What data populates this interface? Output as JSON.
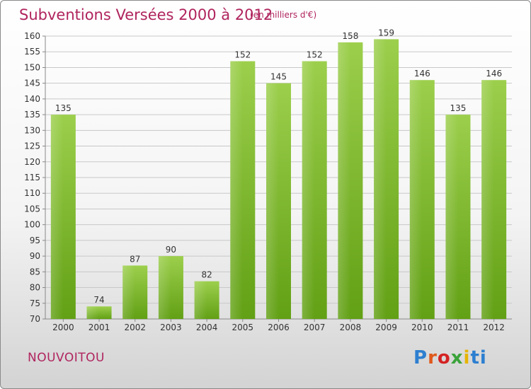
{
  "header": {
    "title": "Subventions Versées 2000 à 2012",
    "unit_note": "(en milliers d'€)"
  },
  "footer": {
    "commune": "NOUVOITOU",
    "logo_text": "Proxiti"
  },
  "colors": {
    "title": "#b0245e",
    "bar_light": "#9ccf4c",
    "bar_dark": "#62a015",
    "grid": "#c8c8c8"
  },
  "chart_data": {
    "type": "bar",
    "title": "Subventions Versées 2000 à 2012",
    "subtitle": "(en milliers d'€)",
    "xlabel": "",
    "ylabel": "",
    "categories": [
      "2000",
      "2001",
      "2002",
      "2003",
      "2004",
      "2005",
      "2006",
      "2007",
      "2008",
      "2009",
      "2010",
      "2011",
      "2012"
    ],
    "values": [
      135,
      74,
      87,
      90,
      82,
      152,
      145,
      152,
      158,
      159,
      146,
      135,
      146
    ],
    "ylim": [
      70,
      160
    ],
    "yticks": [
      70,
      75,
      80,
      85,
      90,
      95,
      100,
      105,
      110,
      115,
      120,
      125,
      130,
      135,
      140,
      145,
      150,
      155,
      160
    ],
    "grid": true,
    "data_labels": true,
    "legend": "none"
  }
}
